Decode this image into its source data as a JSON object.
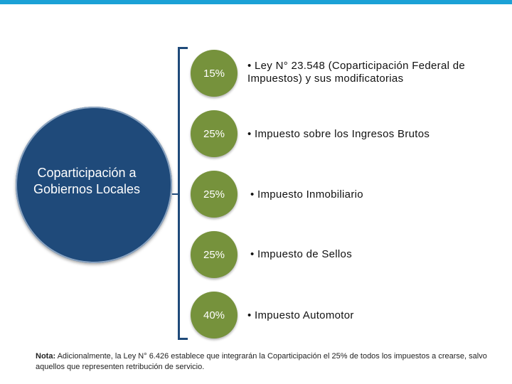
{
  "center": {
    "label": "Coparticipación a Gobiernos Locales"
  },
  "items": [
    {
      "percent": "15%",
      "text": "• Ley N° 23.548 (Coparticipación Federal de Impuestos) y sus modificatorias"
    },
    {
      "percent": "25%",
      "text": "• Impuesto sobre los Ingresos Brutos"
    },
    {
      "percent": "25%",
      "text": "• Impuesto Inmobiliario"
    },
    {
      "percent": "25%",
      "text": "• Impuesto de Sellos"
    },
    {
      "percent": "40%",
      "text": "• Impuesto Automotor"
    }
  ],
  "note": {
    "label": "Nota:",
    "text": "Adicionalmente, la Ley N° 6.426 establece que integrarán la Coparticipación el 25% de todos los impuestos a crearse, salvo aquellos que representen retribución de servicio."
  },
  "colors": {
    "accent": "#1ba1d6",
    "circle": "#1f4a7a",
    "pct": "#76923c"
  }
}
